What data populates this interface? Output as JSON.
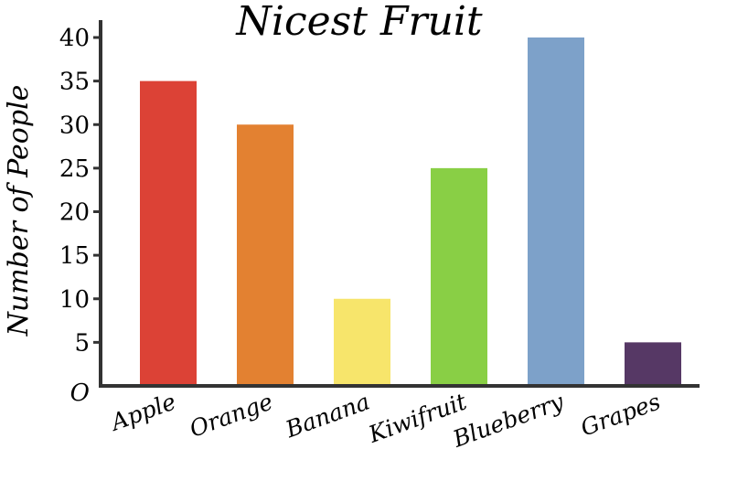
{
  "chart_data": {
    "type": "bar",
    "title": "Nicest Fruit",
    "xlabel": "",
    "ylabel": "Number of People",
    "categories": [
      "Apple",
      "Orange",
      "Banana",
      "Kiwifruit",
      "Blueberry",
      "Grapes"
    ],
    "values": [
      35,
      30,
      10,
      25,
      40,
      5
    ],
    "colors": [
      "#dc4236",
      "#e38131",
      "#f7e56b",
      "#89cf45",
      "#7da1c9",
      "#563865"
    ],
    "ylim": [
      0,
      40
    ],
    "yticks": [
      "O",
      "5",
      "10",
      "15",
      "20",
      "25",
      "30",
      "35",
      "40"
    ],
    "grid": false
  }
}
